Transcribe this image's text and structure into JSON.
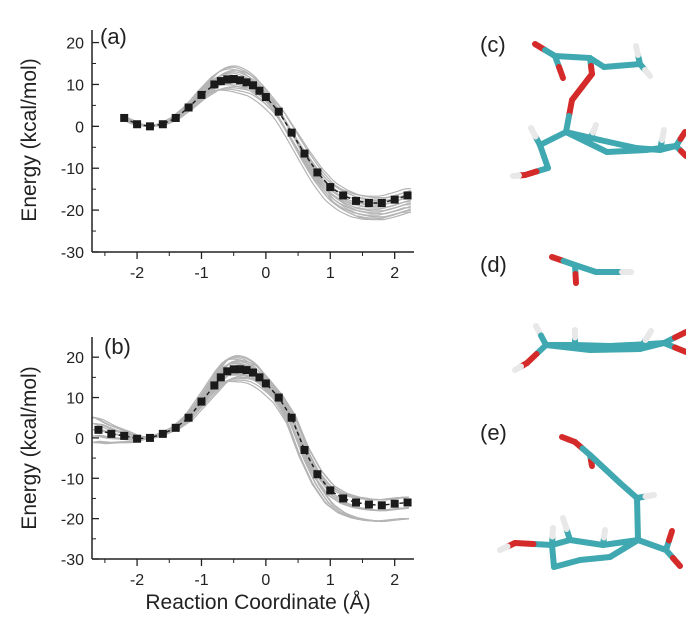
{
  "figure": {
    "xlabel": "Reaction Coordinate (Å)",
    "panel_labels": [
      "(a)",
      "(b)",
      "(c)",
      "(d)",
      "(e)"
    ]
  },
  "colors": {
    "mean_curve": "#1a1a1a",
    "sample_curves": "#b4b4b4",
    "carbon": "#3fa8b0",
    "oxygen": "#d42a2a",
    "hydrogen": "#e8e8e8"
  },
  "chart_data": [
    {
      "type": "line",
      "panel": "(a)",
      "xlabel": "",
      "ylabel": "Energy (kcal/mol)",
      "xlim": [
        -2.7,
        2.3
      ],
      "ylim": [
        -30,
        23
      ],
      "xticks": [
        -2,
        -1,
        0,
        1,
        2
      ],
      "yticks": [
        -30,
        -20,
        -10,
        0,
        10,
        20
      ],
      "grid": false,
      "series": [
        {
          "role": "mean",
          "marker": "square",
          "x": [
            -2.2,
            -2.0,
            -1.8,
            -1.6,
            -1.4,
            -1.2,
            -1.0,
            -0.8,
            -0.7,
            -0.6,
            -0.5,
            -0.4,
            -0.3,
            -0.2,
            -0.1,
            0.0,
            0.2,
            0.4,
            0.6,
            0.8,
            1.0,
            1.2,
            1.4,
            1.6,
            1.8,
            2.0,
            2.2
          ],
          "y": [
            2,
            0.5,
            0,
            0.5,
            2,
            4.5,
            7.5,
            10,
            10.8,
            11.2,
            11.3,
            11,
            10.5,
            9.8,
            8.5,
            7,
            3.5,
            -1.5,
            -6.5,
            -11,
            -14.5,
            -16.5,
            -17.8,
            -18.3,
            -18.3,
            -17.5,
            -16.5
          ]
        },
        {
          "role": "samples",
          "count": 18,
          "peak_spread": [
            8.5,
            14.5
          ],
          "end_spread": [
            -20.5,
            -14.5
          ]
        }
      ]
    },
    {
      "type": "line",
      "panel": "(b)",
      "xlabel": "Reaction Coordinate (Å)",
      "ylabel": "Energy (kcal/mol)",
      "xlim": [
        -2.7,
        2.3
      ],
      "ylim": [
        -30,
        25
      ],
      "xticks": [
        -2,
        -1,
        0,
        1,
        2
      ],
      "yticks": [
        -30,
        -20,
        -10,
        0,
        10,
        20
      ],
      "grid": false,
      "series": [
        {
          "role": "mean",
          "marker": "square",
          "x": [
            -2.6,
            -2.4,
            -2.2,
            -2.0,
            -1.8,
            -1.6,
            -1.4,
            -1.2,
            -1.0,
            -0.8,
            -0.7,
            -0.6,
            -0.5,
            -0.4,
            -0.3,
            -0.2,
            -0.1,
            0.0,
            0.2,
            0.4,
            0.6,
            0.8,
            1.0,
            1.2,
            1.4,
            1.6,
            1.8,
            2.0,
            2.2
          ],
          "y": [
            2,
            1,
            0.5,
            -0.2,
            0,
            1,
            2.5,
            5,
            9,
            13,
            15,
            16.5,
            17,
            17,
            16.8,
            16.2,
            15,
            13.5,
            10,
            5,
            -3,
            -9,
            -13,
            -15,
            -16,
            -16.5,
            -16.7,
            -16.3,
            -16
          ]
        },
        {
          "role": "samples",
          "count": 22,
          "peak_spread": [
            14,
            20.5
          ],
          "end_spread": [
            -20,
            -12
          ]
        }
      ]
    }
  ]
}
